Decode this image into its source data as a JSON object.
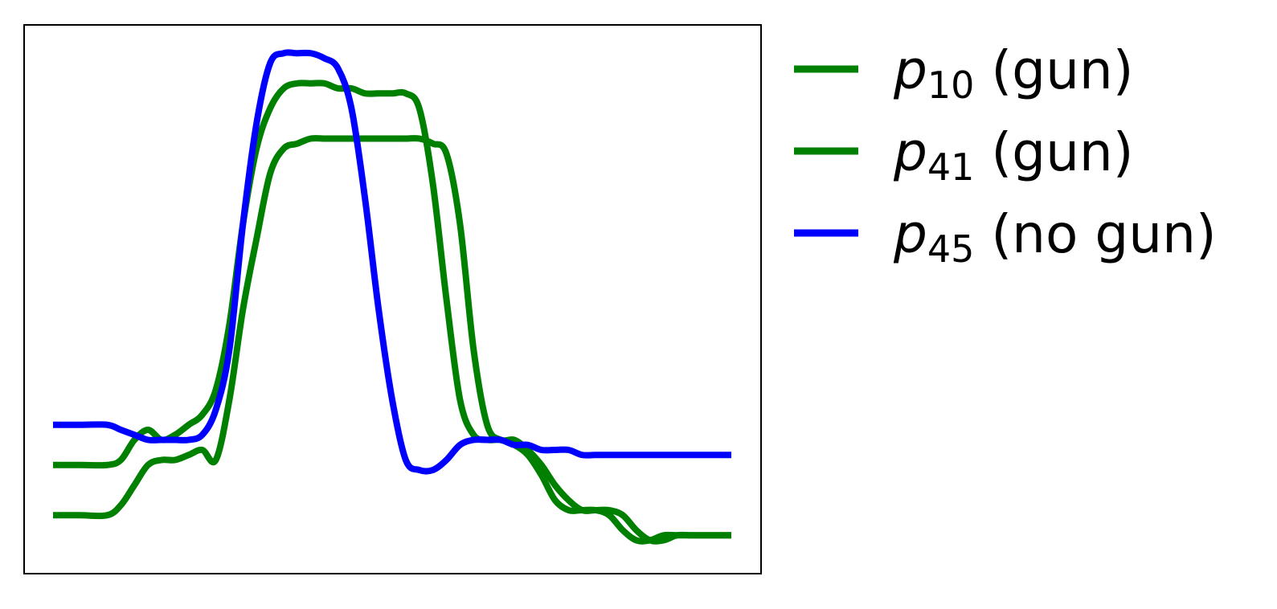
{
  "chart_data": {
    "type": "line",
    "title": "",
    "xlabel": "",
    "ylabel": "",
    "grid": false,
    "axes_ticks": false,
    "xlim": [
      0,
      100
    ],
    "ylim": [
      0,
      100
    ],
    "legend_position": "outside-top-right",
    "series": [
      {
        "name": "p10 (gun)",
        "label_base": "p",
        "label_sub": "10",
        "label_suffix": " (gun)",
        "color": "#008000",
        "x": [
          0,
          4,
          8,
          10,
          12,
          14,
          16,
          18,
          20,
          22,
          24,
          26,
          28,
          30,
          32,
          34,
          36,
          38,
          40,
          42,
          44,
          46,
          48,
          50,
          52,
          54,
          56,
          58,
          60,
          62,
          64,
          66,
          68,
          70,
          72,
          74,
          76,
          78,
          80,
          82,
          84,
          86,
          88,
          90,
          92,
          94,
          96,
          98,
          100
        ],
        "y": [
          17,
          17,
          17,
          18,
          22,
          24,
          22,
          23,
          25,
          27,
          32,
          45,
          65,
          80,
          88,
          92,
          93,
          93,
          93,
          92,
          92,
          91,
          91,
          91,
          91,
          88,
          73,
          50,
          30,
          23,
          22,
          22,
          21,
          19,
          15,
          10,
          8,
          8,
          8,
          7,
          4,
          2,
          2,
          3,
          3,
          3,
          3,
          3,
          3
        ]
      },
      {
        "name": "p41 (gun)",
        "label_base": "p",
        "label_sub": "41",
        "label_suffix": " (gun)",
        "color": "#008000",
        "x": [
          0,
          4,
          8,
          10,
          12,
          14,
          16,
          18,
          20,
          22,
          24,
          26,
          28,
          30,
          32,
          34,
          36,
          38,
          40,
          42,
          44,
          46,
          48,
          50,
          52,
          54,
          56,
          58,
          60,
          62,
          64,
          66,
          68,
          70,
          72,
          74,
          76,
          78,
          80,
          82,
          84,
          86,
          88,
          90,
          92,
          94,
          96,
          98,
          100
        ],
        "y": [
          7,
          7,
          7,
          9,
          13,
          17,
          18,
          18,
          19,
          20,
          18,
          30,
          48,
          62,
          75,
          80,
          81,
          82,
          82,
          82,
          82,
          82,
          82,
          82,
          82,
          82,
          81,
          79,
          65,
          40,
          25,
          22,
          22,
          20,
          17,
          13,
          10,
          8,
          8,
          8,
          7,
          4,
          2,
          2,
          3,
          3,
          3,
          3,
          3
        ]
      },
      {
        "name": "p45 (no gun)",
        "label_base": "p",
        "label_sub": "45",
        "label_suffix": " (no gun)",
        "color": "#0000ff",
        "x": [
          0,
          4,
          8,
          10,
          12,
          14,
          16,
          18,
          20,
          22,
          24,
          26,
          28,
          30,
          32,
          34,
          36,
          38,
          40,
          42,
          44,
          46,
          48,
          50,
          52,
          54,
          56,
          58,
          60,
          62,
          64,
          66,
          68,
          70,
          72,
          74,
          76,
          78,
          80,
          82,
          84,
          86,
          88,
          90,
          92,
          94,
          96,
          98,
          100
        ],
        "y": [
          25,
          25,
          25,
          24,
          23,
          22,
          22,
          22,
          22,
          23,
          28,
          40,
          65,
          85,
          97,
          99,
          99,
          99,
          98,
          96,
          88,
          70,
          48,
          30,
          18,
          16,
          16,
          18,
          21,
          22,
          22,
          22,
          21,
          21,
          20,
          20,
          20,
          19,
          19,
          19,
          19,
          19,
          19,
          19,
          19,
          19,
          19,
          19,
          19
        ]
      }
    ]
  }
}
